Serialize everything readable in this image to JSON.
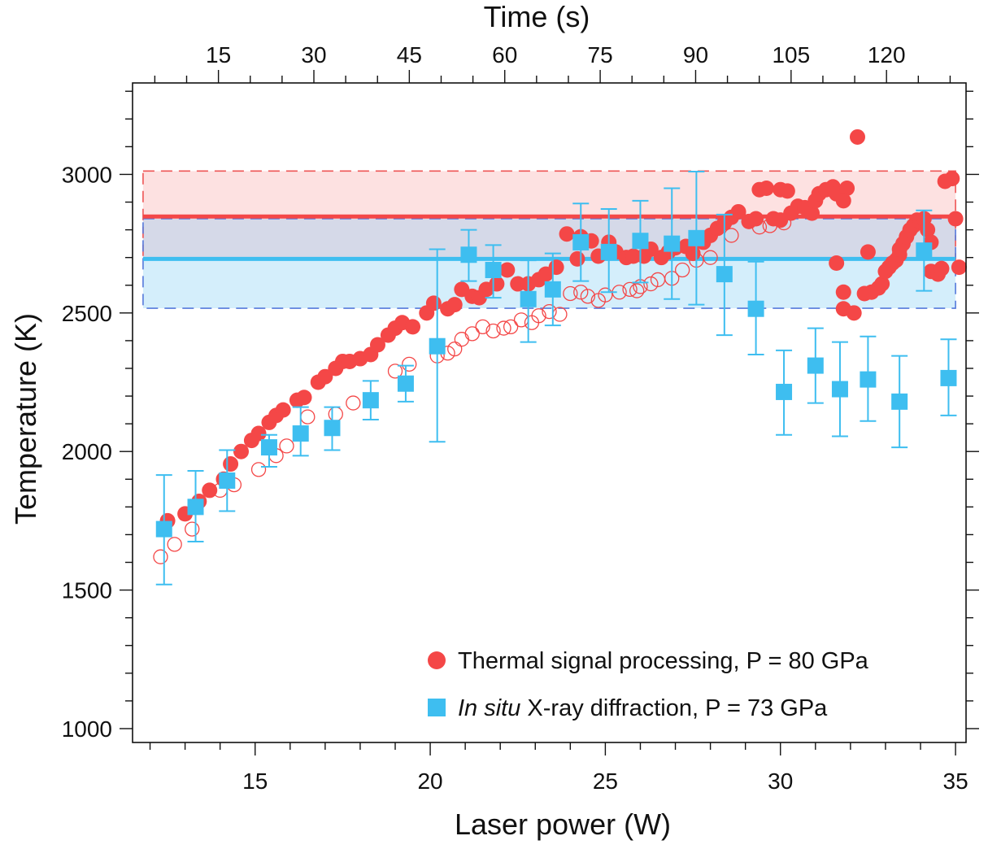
{
  "chart_data": {
    "type": "scatter",
    "xlabel": "Laser power (W)",
    "ylabel": "Temperature (K)",
    "top_xlabel": "Time (s)",
    "xlim": [
      11.5,
      35.3
    ],
    "ylim": [
      950,
      3330
    ],
    "top_xlim": [
      1.5,
      132.5
    ],
    "x_ticks": [
      "15",
      "20",
      "25",
      "30",
      "35"
    ],
    "y_ticks": [
      "1000",
      "1500",
      "2000",
      "2500",
      "3000"
    ],
    "top_ticks": [
      "15",
      "30",
      "45",
      "60",
      "75",
      "90",
      "105",
      "120"
    ],
    "grid": false,
    "legend_position": "bottom-right",
    "colors": {
      "thermal": "#f44747",
      "xrd": "#3ebef0",
      "red_band": "#fde1e1",
      "blue_band": "#d4eefb",
      "overlap_band": "#d5d9e8",
      "red_dash": "#ee5555",
      "blue_dash": "#5579db"
    },
    "bands": [
      {
        "series": "thermal",
        "y_mean": 2848,
        "y_low": 2692,
        "y_high": 3012,
        "x_range": [
          11.8,
          35.0
        ]
      },
      {
        "series": "xrd",
        "y_mean": 2695,
        "y_low": 2517,
        "y_high": 2840,
        "x_range": [
          11.8,
          35.0
        ]
      }
    ],
    "series": [
      {
        "name": "Thermal signal processing, P = 80 GPa",
        "legend_label": "Thermal signal processing, P = 80 GPa",
        "marker": "filled-circle",
        "points": [
          [
            12.5,
            1750
          ],
          [
            13.0,
            1775
          ],
          [
            13.4,
            1820
          ],
          [
            13.7,
            1860
          ],
          [
            14.1,
            1900
          ],
          [
            14.3,
            1955
          ],
          [
            14.6,
            2000
          ],
          [
            14.9,
            2040
          ],
          [
            15.1,
            2065
          ],
          [
            15.4,
            2105
          ],
          [
            15.6,
            2130
          ],
          [
            15.8,
            2150
          ],
          [
            16.2,
            2185
          ],
          [
            16.4,
            2195
          ],
          [
            16.8,
            2250
          ],
          [
            17.0,
            2270
          ],
          [
            17.3,
            2300
          ],
          [
            17.5,
            2325
          ],
          [
            17.7,
            2325
          ],
          [
            18.0,
            2335
          ],
          [
            18.3,
            2350
          ],
          [
            18.5,
            2385
          ],
          [
            18.8,
            2420
          ],
          [
            19.0,
            2445
          ],
          [
            19.2,
            2465
          ],
          [
            19.5,
            2450
          ],
          [
            19.9,
            2500
          ],
          [
            20.1,
            2535
          ],
          [
            20.5,
            2515
          ],
          [
            20.7,
            2530
          ],
          [
            20.9,
            2585
          ],
          [
            21.2,
            2560
          ],
          [
            21.4,
            2555
          ],
          [
            21.6,
            2585
          ],
          [
            21.9,
            2605
          ],
          [
            22.2,
            2655
          ],
          [
            22.5,
            2605
          ],
          [
            22.8,
            2605
          ],
          [
            23.1,
            2620
          ],
          [
            23.3,
            2640
          ],
          [
            23.6,
            2665
          ],
          [
            23.9,
            2785
          ],
          [
            24.2,
            2695
          ],
          [
            24.3,
            2775
          ],
          [
            24.6,
            2760
          ],
          [
            24.8,
            2705
          ],
          [
            25.1,
            2755
          ],
          [
            25.3,
            2720
          ],
          [
            25.6,
            2700
          ],
          [
            25.8,
            2705
          ],
          [
            26.1,
            2705
          ],
          [
            26.3,
            2730
          ],
          [
            26.6,
            2700
          ],
          [
            26.8,
            2720
          ],
          [
            27.0,
            2735
          ],
          [
            27.3,
            2740
          ],
          [
            27.5,
            2715
          ],
          [
            27.8,
            2755
          ],
          [
            28.0,
            2780
          ],
          [
            28.2,
            2805
          ],
          [
            28.4,
            2825
          ],
          [
            28.6,
            2845
          ],
          [
            28.8,
            2865
          ],
          [
            29.1,
            2830
          ],
          [
            29.3,
            2840
          ],
          [
            29.4,
            2945
          ],
          [
            29.6,
            2950
          ],
          [
            29.8,
            2840
          ],
          [
            30.0,
            2945
          ],
          [
            30.2,
            2940
          ],
          [
            30.0,
            2835
          ],
          [
            30.3,
            2860
          ],
          [
            30.5,
            2885
          ],
          [
            30.7,
            2880
          ],
          [
            30.9,
            2860
          ],
          [
            31.0,
            2905
          ],
          [
            31.1,
            2930
          ],
          [
            31.3,
            2945
          ],
          [
            31.5,
            2955
          ],
          [
            31.6,
            2930
          ],
          [
            31.9,
            2950
          ],
          [
            31.8,
            2905
          ],
          [
            31.6,
            2680
          ],
          [
            31.8,
            2575
          ],
          [
            31.8,
            2515
          ],
          [
            32.1,
            2500
          ],
          [
            32.2,
            3135
          ],
          [
            32.4,
            2570
          ],
          [
            32.6,
            2575
          ],
          [
            32.5,
            2720
          ],
          [
            32.8,
            2590
          ],
          [
            32.9,
            2605
          ],
          [
            33.0,
            2650
          ],
          [
            33.1,
            2665
          ],
          [
            33.2,
            2680
          ],
          [
            33.3,
            2690
          ],
          [
            33.4,
            2710
          ],
          [
            33.4,
            2730
          ],
          [
            33.5,
            2750
          ],
          [
            33.6,
            2775
          ],
          [
            33.7,
            2800
          ],
          [
            33.8,
            2815
          ],
          [
            33.9,
            2835
          ],
          [
            34.0,
            2830
          ],
          [
            34.1,
            2840
          ],
          [
            34.2,
            2800
          ],
          [
            34.3,
            2755
          ],
          [
            34.3,
            2650
          ],
          [
            34.5,
            2640
          ],
          [
            34.6,
            2660
          ],
          [
            34.7,
            2975
          ],
          [
            34.9,
            2985
          ],
          [
            35.0,
            2840
          ],
          [
            35.1,
            2665
          ],
          [
            34.6,
            2660
          ]
        ]
      },
      {
        "name": "Thermal signal processing, P = 80 GPa (open)",
        "marker": "open-circle",
        "points": [
          [
            12.3,
            1620
          ],
          [
            12.7,
            1665
          ],
          [
            13.2,
            1720
          ],
          [
            14.0,
            1860
          ],
          [
            14.4,
            1880
          ],
          [
            15.1,
            1935
          ],
          [
            15.6,
            1985
          ],
          [
            15.9,
            2020
          ],
          [
            16.5,
            2125
          ],
          [
            17.3,
            2135
          ],
          [
            17.8,
            2175
          ],
          [
            19.0,
            2290
          ],
          [
            19.4,
            2315
          ],
          [
            20.2,
            2345
          ],
          [
            20.5,
            2355
          ],
          [
            20.7,
            2370
          ],
          [
            20.9,
            2405
          ],
          [
            21.2,
            2425
          ],
          [
            21.5,
            2450
          ],
          [
            21.8,
            2435
          ],
          [
            22.1,
            2445
          ],
          [
            22.3,
            2450
          ],
          [
            22.6,
            2475
          ],
          [
            22.9,
            2465
          ],
          [
            23.1,
            2490
          ],
          [
            23.4,
            2505
          ],
          [
            23.7,
            2495
          ],
          [
            24.0,
            2570
          ],
          [
            24.3,
            2575
          ],
          [
            24.5,
            2560
          ],
          [
            24.8,
            2545
          ],
          [
            25.0,
            2565
          ],
          [
            25.4,
            2575
          ],
          [
            25.7,
            2585
          ],
          [
            25.9,
            2580
          ],
          [
            26.0,
            2595
          ],
          [
            26.3,
            2605
          ],
          [
            26.5,
            2620
          ],
          [
            26.9,
            2625
          ],
          [
            27.2,
            2655
          ],
          [
            27.6,
            2690
          ],
          [
            28.0,
            2700
          ],
          [
            28.6,
            2780
          ],
          [
            29.4,
            2810
          ],
          [
            29.7,
            2815
          ],
          [
            30.1,
            2825
          ]
        ]
      },
      {
        "name": "In situ X-ray diffraction, P = 73 GPa",
        "legend_label_italic": "In situ",
        "legend_label_rest": " X-ray diffraction, P = 73 GPa",
        "marker": "filled-square",
        "points": [
          [
            12.4,
            1720,
            1520,
            1915
          ],
          [
            13.3,
            1800,
            1675,
            1930
          ],
          [
            14.2,
            1895,
            1785,
            2005
          ],
          [
            15.4,
            2015,
            1945,
            2060
          ],
          [
            16.3,
            2065,
            1985,
            2160
          ],
          [
            17.2,
            2085,
            2005,
            2160
          ],
          [
            18.3,
            2185,
            2115,
            2255
          ],
          [
            19.3,
            2245,
            2180,
            2310
          ],
          [
            20.2,
            2380,
            2035,
            2730
          ],
          [
            21.1,
            2710,
            2615,
            2800
          ],
          [
            21.8,
            2655,
            2555,
            2745
          ],
          [
            22.8,
            2550,
            2395,
            2690
          ],
          [
            23.5,
            2585,
            2455,
            2715
          ],
          [
            24.3,
            2755,
            2615,
            2895
          ],
          [
            25.1,
            2720,
            2575,
            2875
          ],
          [
            26.0,
            2760,
            2610,
            2905
          ],
          [
            26.9,
            2750,
            2550,
            2950
          ],
          [
            27.6,
            2770,
            2530,
            3010
          ],
          [
            28.4,
            2640,
            2420,
            2855
          ],
          [
            29.3,
            2515,
            2350,
            2685
          ],
          [
            30.1,
            2215,
            2060,
            2365
          ],
          [
            31.0,
            2310,
            2175,
            2445
          ],
          [
            31.7,
            2225,
            2055,
            2395
          ],
          [
            32.5,
            2260,
            2110,
            2415
          ],
          [
            33.4,
            2180,
            2015,
            2345
          ],
          [
            34.1,
            2725,
            2580,
            2870
          ],
          [
            34.8,
            2265,
            2130,
            2405
          ]
        ]
      }
    ]
  }
}
